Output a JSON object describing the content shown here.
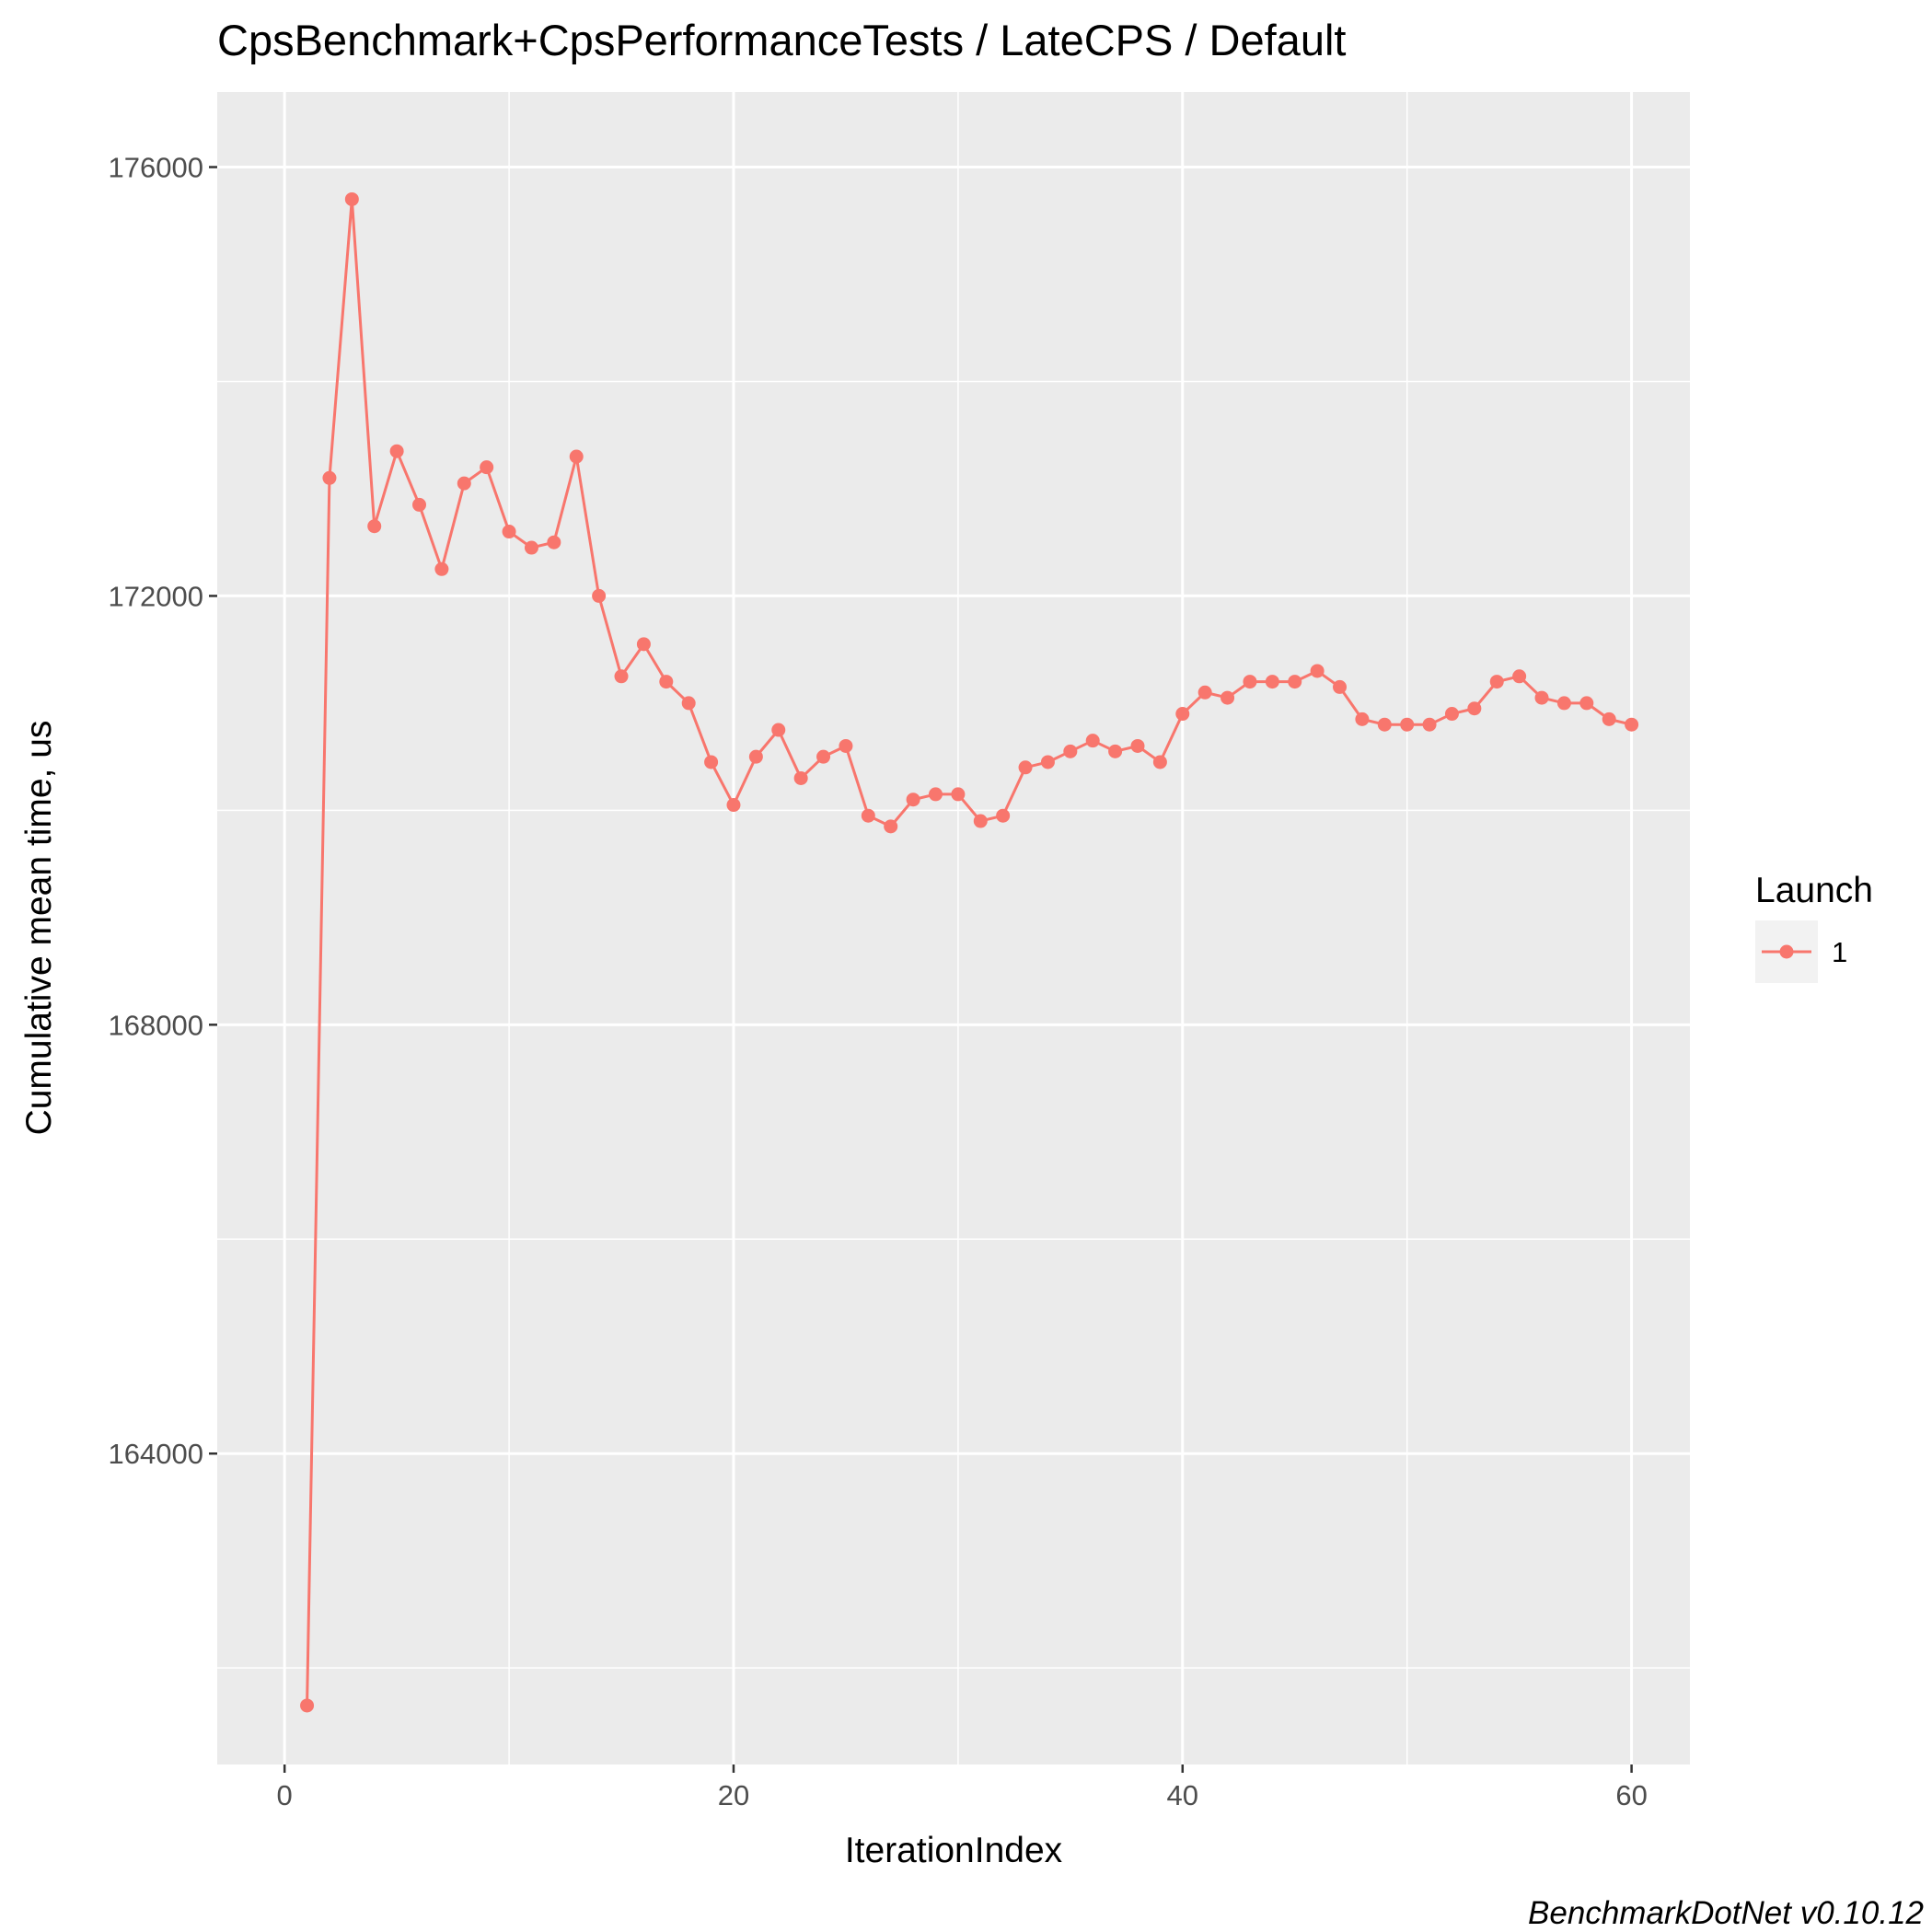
{
  "chart_data": {
    "type": "line",
    "title": "CpsBenchmark+CpsPerformanceTests / LateCPS / Default",
    "xlabel": "IterationIndex",
    "ylabel": "Cumulative mean time, us",
    "caption": "BenchmarkDotNet v0.10.12",
    "xlim": [
      -3,
      62.6
    ],
    "ylim": [
      161100,
      176700
    ],
    "x_ticks": [
      0,
      20,
      40,
      60
    ],
    "x_tick_labels": [
      "0",
      "20",
      "40",
      "60"
    ],
    "y_ticks": [
      164000,
      168000,
      172000,
      176000
    ],
    "y_tick_labels": [
      "164000",
      "168000",
      "172000",
      "176000"
    ],
    "x_minor_ticks": [
      10,
      30,
      50
    ],
    "y_minor_ticks": [
      162000,
      166000,
      170000,
      174000
    ],
    "grid": true,
    "legend": {
      "title": "Launch",
      "position": "right",
      "entries": [
        "1"
      ]
    },
    "colors": {
      "series": "#F8766D",
      "panel": "#EBEBEB",
      "grid": "#FFFFFF"
    },
    "series": [
      {
        "name": "1",
        "x": [
          1,
          2,
          3,
          4,
          5,
          6,
          7,
          8,
          9,
          10,
          11,
          12,
          13,
          14,
          15,
          16,
          17,
          18,
          19,
          20,
          21,
          22,
          23,
          24,
          25,
          26,
          27,
          28,
          29,
          30,
          31,
          32,
          33,
          34,
          35,
          36,
          37,
          38,
          39,
          40,
          41,
          42,
          43,
          44,
          45,
          46,
          47,
          48,
          49,
          50,
          51,
          52,
          53,
          54,
          55,
          56,
          57,
          58,
          59,
          60
        ],
        "y": [
          161650,
          173100,
          175700,
          172650,
          173350,
          172850,
          172250,
          173050,
          173200,
          172600,
          172450,
          172500,
          173300,
          172000,
          171250,
          171550,
          171200,
          171000,
          170450,
          170050,
          170500,
          170750,
          170300,
          170500,
          170600,
          169950,
          169850,
          170100,
          170150,
          170150,
          169900,
          169950,
          170400,
          170450,
          170550,
          170650,
          170550,
          170600,
          170450,
          170900,
          171100,
          171050,
          171200,
          171200,
          171200,
          171300,
          171150,
          170850,
          170800,
          170800,
          170800,
          170900,
          170950,
          171200,
          171250,
          171050,
          171000,
          171000,
          170850,
          170800
        ]
      }
    ]
  }
}
